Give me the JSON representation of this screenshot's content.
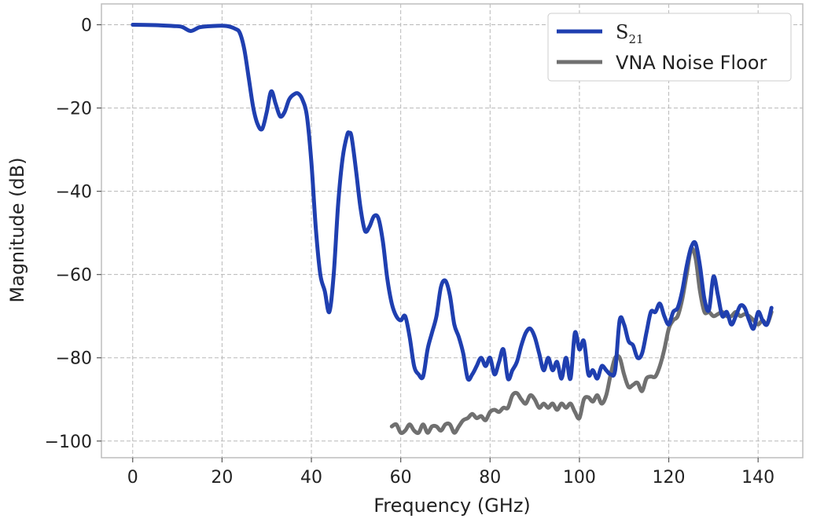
{
  "chart_data": {
    "type": "line",
    "xlabel": "Frequency (GHz)",
    "ylabel": "Magnitude (dB)",
    "xlim": [
      -7,
      150
    ],
    "ylim": [
      -104,
      5
    ],
    "xticks": [
      0,
      20,
      40,
      60,
      80,
      100,
      120,
      140
    ],
    "yticks": [
      0,
      -20,
      -40,
      -60,
      -80,
      -100
    ],
    "xtick_labels": [
      "0",
      "20",
      "40",
      "60",
      "80",
      "100",
      "120",
      "140"
    ],
    "ytick_labels": [
      "0",
      "−20",
      "−40",
      "−60",
      "−80",
      "−100"
    ],
    "grid": true,
    "legend_position": "top-right",
    "series": [
      {
        "name": "S",
        "name_sub": "21",
        "color": "#1f3fb0",
        "x": [
          0,
          5,
          9,
          11,
          13,
          15,
          18,
          21,
          23,
          24,
          25,
          26,
          27,
          28,
          29,
          30,
          31,
          32,
          33,
          34,
          35,
          36,
          37,
          38,
          39,
          40,
          41,
          42,
          43,
          44,
          45,
          46,
          47,
          48,
          48.5,
          49,
          50,
          51,
          52,
          53,
          54,
          55,
          56,
          57,
          58,
          59,
          60,
          61,
          62,
          63,
          64,
          65,
          66,
          67,
          68,
          69,
          70,
          71,
          72,
          73,
          74,
          75,
          76,
          77,
          78,
          79,
          80,
          81,
          82,
          83,
          84,
          85,
          86,
          87,
          88,
          89,
          90,
          91,
          92,
          93,
          94,
          95,
          96,
          97,
          98,
          99,
          100,
          101,
          102,
          103,
          104,
          105,
          106,
          107,
          108,
          109,
          110,
          111,
          112,
          113,
          114,
          115,
          116,
          117,
          118,
          119,
          120,
          121,
          122,
          123,
          124,
          125,
          126,
          127,
          128,
          129,
          130,
          131,
          132,
          133,
          134,
          135,
          136,
          137,
          138,
          139,
          140,
          141,
          142,
          143
        ],
        "y": [
          0,
          -0.1,
          -0.3,
          -0.5,
          -1.5,
          -0.6,
          -0.3,
          -0.3,
          -1,
          -2,
          -6,
          -13,
          -20,
          -24,
          -25,
          -21,
          -16,
          -19,
          -22,
          -21,
          -18,
          -16.8,
          -16.5,
          -18,
          -22,
          -33,
          -49,
          -60,
          -64,
          -69,
          -60,
          -43,
          -32,
          -26.5,
          -26,
          -27,
          -35,
          -44,
          -49.5,
          -48.5,
          -46,
          -46.5,
          -52,
          -61,
          -67,
          -70,
          -71,
          -70,
          -75,
          -82,
          -84,
          -84.5,
          -78,
          -74,
          -70,
          -63,
          -61.5,
          -65,
          -72,
          -75,
          -79,
          -85,
          -84,
          -82,
          -80,
          -82,
          -80,
          -84,
          -81,
          -78,
          -85,
          -83,
          -81,
          -77,
          -74,
          -73,
          -75,
          -79,
          -83,
          -80,
          -83,
          -81,
          -85,
          -80,
          -85,
          -74,
          -78,
          -76,
          -84,
          -83,
          -85,
          -82,
          -83,
          -84,
          -83,
          -71,
          -72,
          -76,
          -77,
          -80,
          -79,
          -74,
          -69,
          -69,
          -67,
          -70,
          -72,
          -69,
          -68,
          -64,
          -58,
          -53.5,
          -52.5,
          -58,
          -66,
          -68.5,
          -60.5,
          -65,
          -70,
          -69,
          -72,
          -70,
          -67.5,
          -68,
          -71,
          -73,
          -69,
          -71,
          -72,
          -68
        ]
      },
      {
        "name": "VNA Noise Floor",
        "color": "#707070",
        "x": [
          58,
          59,
          60,
          61,
          62,
          63,
          64,
          65,
          66,
          67,
          68,
          69,
          70,
          71,
          72,
          73,
          74,
          75,
          76,
          77,
          78,
          79,
          80,
          81,
          82,
          83,
          84,
          85,
          86,
          87,
          88,
          89,
          90,
          91,
          92,
          93,
          94,
          95,
          96,
          97,
          98,
          99,
          100,
          101,
          102,
          103,
          104,
          105,
          106,
          107,
          108,
          109,
          110,
          111,
          112,
          113,
          114,
          115,
          116,
          117,
          118,
          119,
          120,
          121,
          122,
          123,
          124,
          125,
          126,
          127,
          128,
          129,
          130,
          131,
          132,
          133,
          134,
          135,
          136,
          137,
          138,
          139,
          140,
          141,
          142,
          143
        ],
        "y": [
          -96.5,
          -96,
          -98,
          -97.5,
          -96,
          -97.5,
          -98,
          -96,
          -98,
          -96.5,
          -96.5,
          -97.5,
          -96,
          -96,
          -98,
          -96.5,
          -95,
          -94.5,
          -93.5,
          -94.5,
          -94,
          -95,
          -93,
          -92.5,
          -93,
          -92,
          -92,
          -89,
          -88.5,
          -90,
          -91,
          -89,
          -90,
          -92,
          -91,
          -92,
          -91,
          -92.5,
          -91,
          -92,
          -91,
          -93,
          -94.5,
          -90,
          -89.5,
          -90.5,
          -89,
          -91,
          -89,
          -84,
          -80,
          -80,
          -84,
          -87,
          -86.5,
          -86,
          -88,
          -85,
          -84.5,
          -84.5,
          -82,
          -78,
          -73,
          -71,
          -70,
          -66,
          -60,
          -54,
          -56,
          -64,
          -69,
          -69,
          -70,
          -69.5,
          -69,
          -70,
          -70,
          -69,
          -70,
          -69.5,
          -70,
          -71,
          -72,
          -71,
          -72,
          -69
        ]
      }
    ]
  }
}
